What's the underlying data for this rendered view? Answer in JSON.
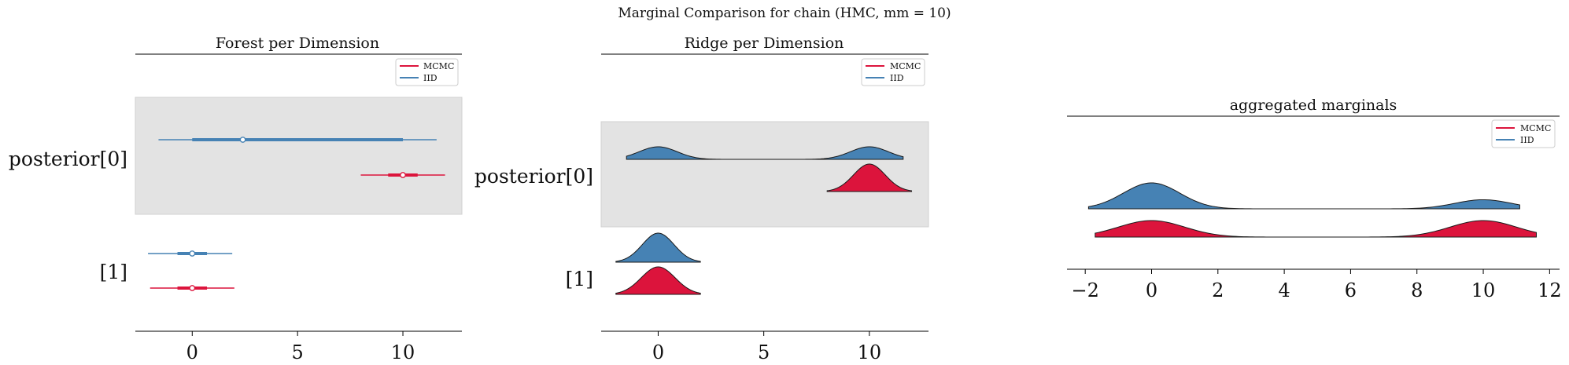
{
  "suptitle": "Marginal Comparison for chain (HMC, mm = 10)",
  "colors": {
    "mcmc": "#dc143c",
    "iid": "#4682b4",
    "band": "#e3e3e3"
  },
  "legend": {
    "placement": "top-right",
    "entries": [
      "MCMC",
      "IID"
    ]
  },
  "chart_data": [
    {
      "type": "forest",
      "title": "Forest per Dimension",
      "xlim": [
        -2.7,
        12.8
      ],
      "xticks": [
        0,
        5,
        10
      ],
      "row_labels": [
        "posterior[0]",
        "[1]"
      ],
      "series": [
        {
          "name": "MCMC",
          "rows": [
            {
              "hdi_low": 8.0,
              "iqr_low": 9.3,
              "median": 10.0,
              "iqr_high": 10.7,
              "hdi_high": 12.0
            },
            {
              "hdi_low": -2.0,
              "iqr_low": -0.7,
              "median": 0.0,
              "iqr_high": 0.7,
              "hdi_high": 2.0
            }
          ]
        },
        {
          "name": "IID",
          "rows": [
            {
              "hdi_low": -1.6,
              "iqr_low": 0.0,
              "median": 2.4,
              "iqr_high": 10.0,
              "hdi_high": 11.6
            },
            {
              "hdi_low": -2.1,
              "iqr_low": -0.7,
              "median": 0.0,
              "iqr_high": 0.7,
              "hdi_high": 1.9
            }
          ]
        }
      ]
    },
    {
      "type": "ridge",
      "title": "Ridge per Dimension",
      "xlim": [
        -2.7,
        12.8
      ],
      "xticks": [
        0,
        5,
        10
      ],
      "row_labels": [
        "posterior[0]",
        "[1]"
      ],
      "series": [
        {
          "name": "MCMC",
          "rows": [
            {
              "range": [
                8.0,
                12.0
              ],
              "modes": [
                {
                  "mu": 10.0,
                  "sigma": 0.75,
                  "w": 1.0
                }
              ]
            },
            {
              "range": [
                -2.0,
                2.0
              ],
              "modes": [
                {
                  "mu": 0.0,
                  "sigma": 0.8,
                  "w": 1.0
                }
              ]
            }
          ]
        },
        {
          "name": "IID",
          "rows": [
            {
              "range": [
                -1.5,
                11.6
              ],
              "modes": [
                {
                  "mu": 0.0,
                  "sigma": 0.9,
                  "w": 1.0
                },
                {
                  "mu": 10.0,
                  "sigma": 0.9,
                  "w": 1.0
                }
              ]
            },
            {
              "range": [
                -2.0,
                2.0
              ],
              "modes": [
                {
                  "mu": 0.0,
                  "sigma": 0.75,
                  "w": 1.0
                }
              ]
            }
          ]
        }
      ]
    },
    {
      "type": "ridge",
      "title": "aggregated marginals",
      "xlim": [
        -2.55,
        12.3
      ],
      "xticks": [
        -2,
        0,
        2,
        4,
        6,
        8,
        10,
        12
      ],
      "xtick_labels": [
        "−2",
        "0",
        "2",
        "4",
        "6",
        "8",
        "10",
        "12"
      ],
      "series": [
        {
          "name": "MCMC",
          "range": [
            -1.7,
            11.6
          ],
          "modes": [
            {
              "mu": 0.0,
              "sigma": 1.0,
              "w": 1.0
            },
            {
              "mu": 10.0,
              "sigma": 1.0,
              "w": 1.0
            }
          ]
        },
        {
          "name": "IID",
          "range": [
            -1.9,
            11.1
          ],
          "modes": [
            {
              "mu": 0.0,
              "sigma": 0.85,
              "w": 1.0
            },
            {
              "mu": 10.0,
              "sigma": 0.85,
              "w": 0.35
            }
          ]
        }
      ]
    }
  ]
}
